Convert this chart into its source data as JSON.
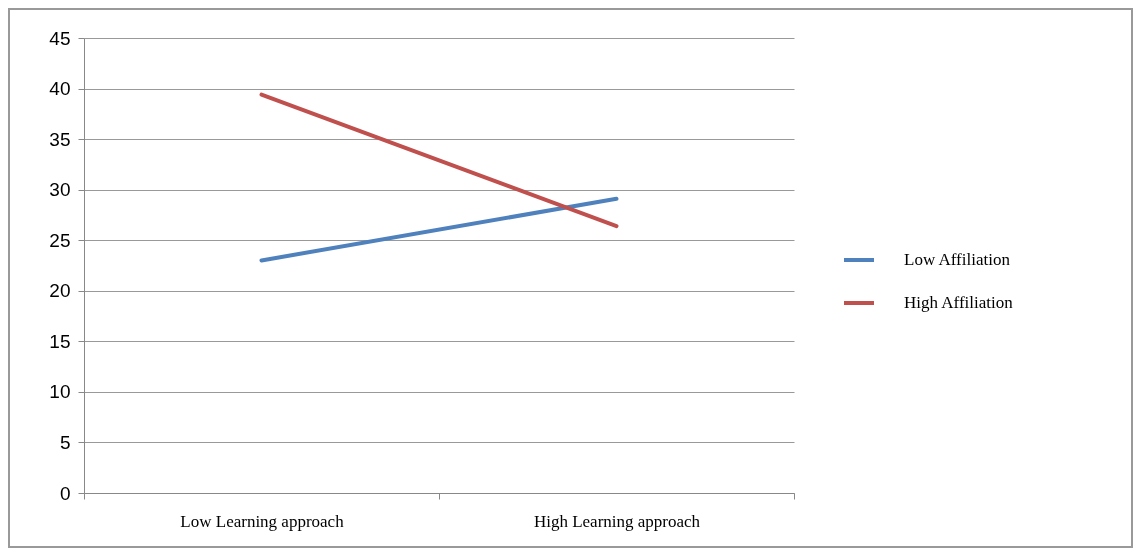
{
  "chart_data": {
    "type": "line",
    "categories": [
      "Low Learning approach",
      "High Learning approach"
    ],
    "series": [
      {
        "name": "Low Affiliation",
        "color": "#4f81bd",
        "values": [
          23.0,
          29.1
        ]
      },
      {
        "name": "High Affiliation",
        "color": "#c0504d",
        "values": [
          39.4,
          26.4
        ]
      }
    ],
    "ylim": [
      0,
      45
    ],
    "yticks": [
      0,
      5,
      10,
      15,
      20,
      25,
      30,
      35,
      40,
      45
    ],
    "grid": "y",
    "legend": "right",
    "marker": "none",
    "line_style": "solid"
  }
}
